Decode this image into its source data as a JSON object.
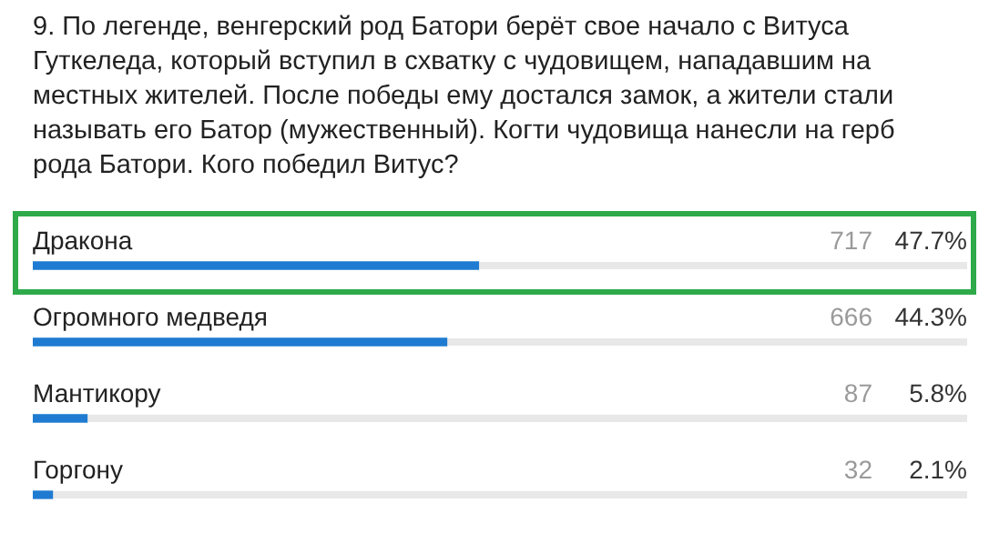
{
  "chart_data": {
    "type": "bar",
    "orientation": "horizontal",
    "title": "9. По легенде, венгерский род Батори берёт свое начало с Витуса Гуткеледа, который вступил в схватку с чудовищем, нападавшим на местных жителей. После победы ему достался замок, а жители стали называть его Батор (мужественный). Когти чудовища нанесли на герб рода Батори. Кого победил Витус?",
    "categories": [
      "Дракона",
      "Огромного медведя",
      "Мантикору",
      "Горгону"
    ],
    "values": [
      47.7,
      44.3,
      5.8,
      2.1
    ],
    "value_labels": [
      "47.7%",
      "44.3%",
      "5.8%",
      "2.1%"
    ],
    "color": "#1f7bd1",
    "xlim": [
      0,
      100
    ],
    "tick_labels": false,
    "legend": false,
    "annotations": [
      "717",
      "666",
      "87",
      "32"
    ]
  }
}
